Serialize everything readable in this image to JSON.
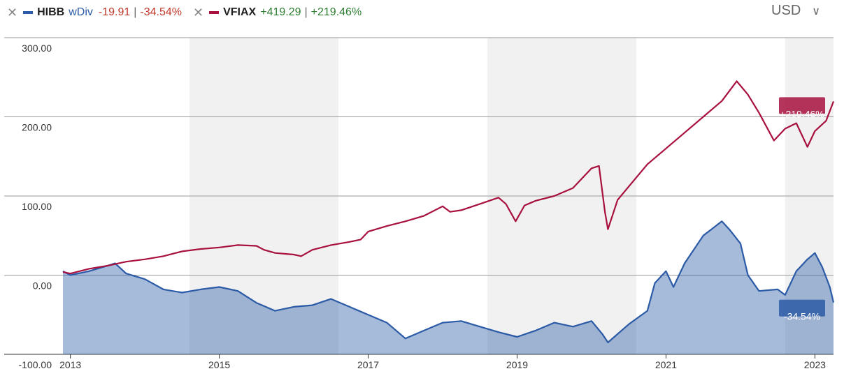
{
  "legend": {
    "hibb": {
      "remove_icon": "close-icon",
      "ticker": "HIBB",
      "wdiv": "wDiv",
      "change": "-19.91",
      "pct": "-34.54%",
      "color": "#2b5aa6"
    },
    "vfiax": {
      "remove_icon": "close-icon",
      "ticker": "VFIAX",
      "change": "+419.29",
      "pct": "+219.46%",
      "color": "#a8103e"
    }
  },
  "currency": {
    "label": "USD",
    "icon": "chevron-down-icon"
  },
  "chart_data": {
    "type": "line",
    "y_tick_labels": [
      "300.00",
      "200.00",
      "100.00",
      "0.00",
      "-100.00"
    ],
    "x_tick_labels": [
      "2013",
      "2015",
      "2017",
      "2019",
      "2021",
      "2023"
    ],
    "ylim": [
      -100,
      300
    ],
    "xlim": [
      2012.9,
      2023.25
    ],
    "grid": true,
    "shaded_bands": [
      [
        2014.6,
        2016.6
      ],
      [
        2018.6,
        2020.6
      ],
      [
        2022.6,
        2023.25
      ]
    ],
    "series": [
      {
        "name": "VFIAX",
        "color": "#a8103e",
        "fill": false,
        "end_label": "+219.46%",
        "points": [
          [
            2012.9,
            4
          ],
          [
            2013.0,
            2
          ],
          [
            2013.25,
            8
          ],
          [
            2013.5,
            12
          ],
          [
            2013.75,
            17
          ],
          [
            2014.0,
            20
          ],
          [
            2014.25,
            24
          ],
          [
            2014.5,
            30
          ],
          [
            2014.75,
            33
          ],
          [
            2015.0,
            35
          ],
          [
            2015.25,
            38
          ],
          [
            2015.5,
            37
          ],
          [
            2015.6,
            32
          ],
          [
            2015.75,
            28
          ],
          [
            2016.0,
            26
          ],
          [
            2016.1,
            24
          ],
          [
            2016.25,
            32
          ],
          [
            2016.5,
            38
          ],
          [
            2016.75,
            42
          ],
          [
            2016.9,
            45
          ],
          [
            2017.0,
            55
          ],
          [
            2017.25,
            62
          ],
          [
            2017.5,
            68
          ],
          [
            2017.75,
            75
          ],
          [
            2018.0,
            87
          ],
          [
            2018.1,
            80
          ],
          [
            2018.25,
            82
          ],
          [
            2018.5,
            90
          ],
          [
            2018.75,
            98
          ],
          [
            2018.85,
            90
          ],
          [
            2018.98,
            68
          ],
          [
            2019.1,
            88
          ],
          [
            2019.25,
            94
          ],
          [
            2019.5,
            100
          ],
          [
            2019.75,
            110
          ],
          [
            2020.0,
            135
          ],
          [
            2020.1,
            138
          ],
          [
            2020.18,
            80
          ],
          [
            2020.22,
            58
          ],
          [
            2020.35,
            95
          ],
          [
            2020.5,
            112
          ],
          [
            2020.75,
            140
          ],
          [
            2021.0,
            160
          ],
          [
            2021.25,
            180
          ],
          [
            2021.5,
            200
          ],
          [
            2021.75,
            220
          ],
          [
            2021.95,
            245
          ],
          [
            2022.1,
            228
          ],
          [
            2022.25,
            205
          ],
          [
            2022.45,
            170
          ],
          [
            2022.6,
            185
          ],
          [
            2022.75,
            192
          ],
          [
            2022.9,
            162
          ],
          [
            2023.0,
            182
          ],
          [
            2023.15,
            195
          ],
          [
            2023.25,
            219.46
          ]
        ]
      },
      {
        "name": "HIBB",
        "color": "#2b5aa6",
        "fill": true,
        "end_label": "-34.54%",
        "points": [
          [
            2012.9,
            5
          ],
          [
            2013.0,
            0
          ],
          [
            2013.25,
            5
          ],
          [
            2013.5,
            12
          ],
          [
            2013.6,
            15
          ],
          [
            2013.75,
            2
          ],
          [
            2014.0,
            -5
          ],
          [
            2014.25,
            -18
          ],
          [
            2014.5,
            -22
          ],
          [
            2014.75,
            -18
          ],
          [
            2015.0,
            -15
          ],
          [
            2015.25,
            -20
          ],
          [
            2015.5,
            -35
          ],
          [
            2015.75,
            -45
          ],
          [
            2016.0,
            -40
          ],
          [
            2016.25,
            -38
          ],
          [
            2016.5,
            -30
          ],
          [
            2016.75,
            -40
          ],
          [
            2017.0,
            -50
          ],
          [
            2017.25,
            -60
          ],
          [
            2017.5,
            -80
          ],
          [
            2017.75,
            -70
          ],
          [
            2018.0,
            -60
          ],
          [
            2018.25,
            -58
          ],
          [
            2018.5,
            -65
          ],
          [
            2018.75,
            -72
          ],
          [
            2019.0,
            -78
          ],
          [
            2019.25,
            -70
          ],
          [
            2019.5,
            -60
          ],
          [
            2019.75,
            -65
          ],
          [
            2020.0,
            -58
          ],
          [
            2020.15,
            -75
          ],
          [
            2020.22,
            -85
          ],
          [
            2020.5,
            -62
          ],
          [
            2020.75,
            -45
          ],
          [
            2020.85,
            -10
          ],
          [
            2021.0,
            5
          ],
          [
            2021.1,
            -15
          ],
          [
            2021.25,
            15
          ],
          [
            2021.5,
            50
          ],
          [
            2021.75,
            68
          ],
          [
            2021.85,
            58
          ],
          [
            2022.0,
            40
          ],
          [
            2022.1,
            0
          ],
          [
            2022.25,
            -20
          ],
          [
            2022.5,
            -18
          ],
          [
            2022.6,
            -25
          ],
          [
            2022.75,
            5
          ],
          [
            2022.9,
            20
          ],
          [
            2023.0,
            28
          ],
          [
            2023.1,
            10
          ],
          [
            2023.2,
            -15
          ],
          [
            2023.25,
            -34.54
          ]
        ]
      }
    ]
  }
}
